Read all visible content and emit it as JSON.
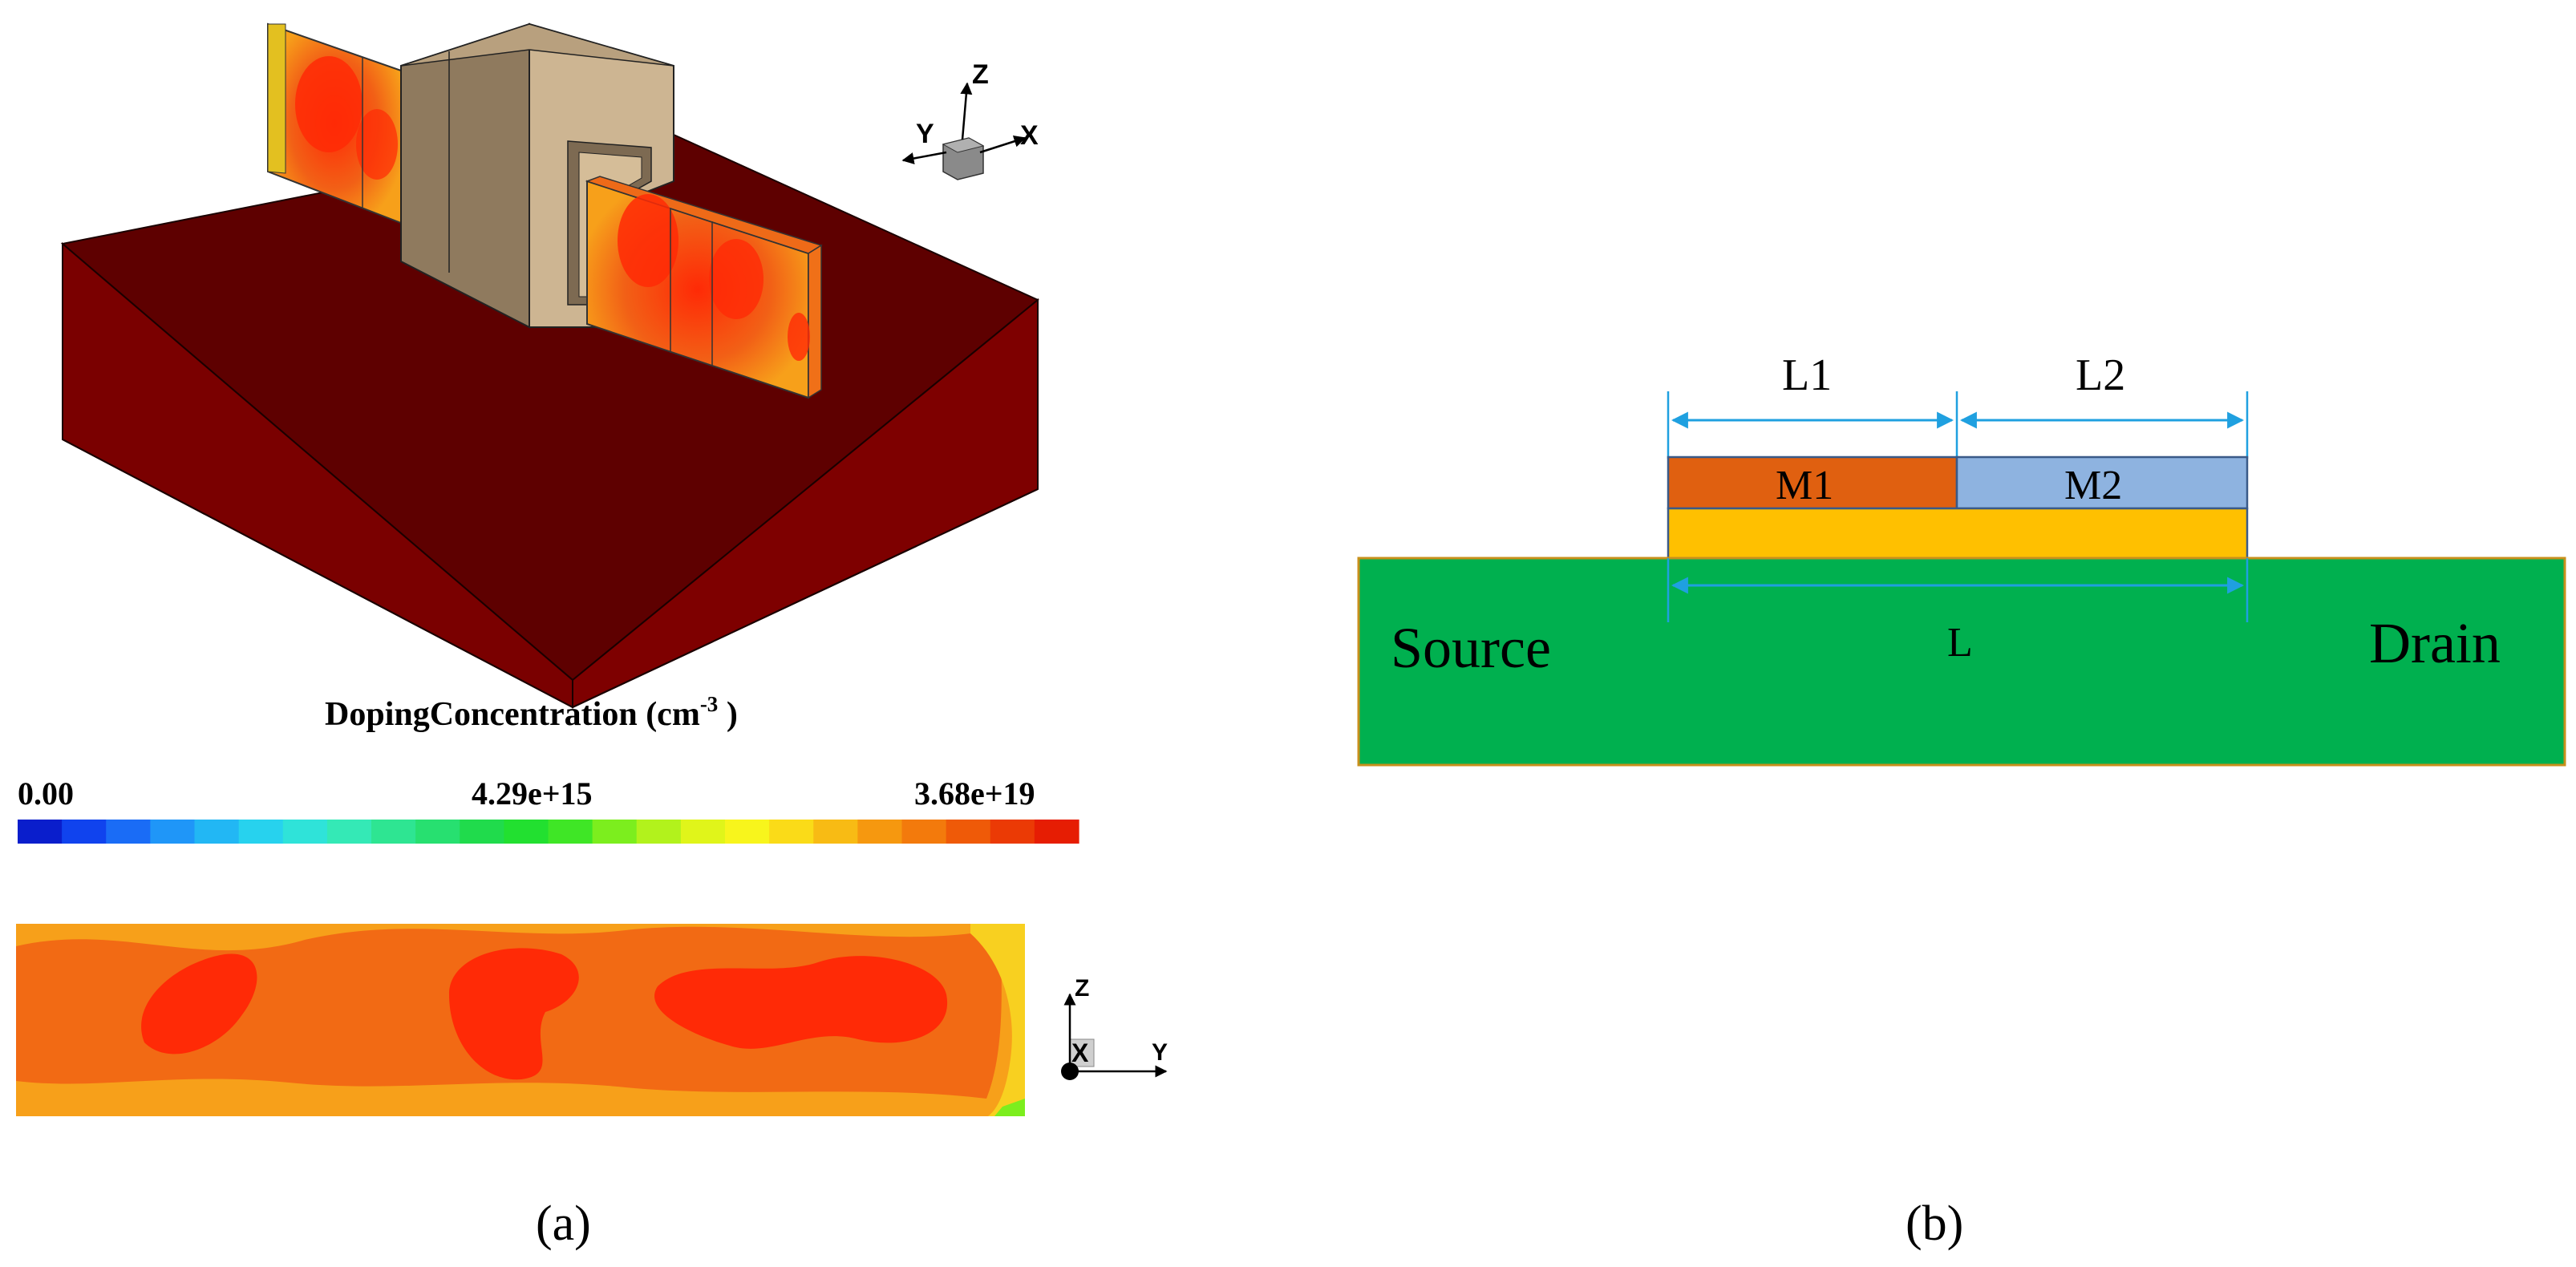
{
  "panel_a": {
    "label": "(a)",
    "axes_top": {
      "z": "Z",
      "y": "Y",
      "x": "X"
    },
    "colorbar": {
      "title": "DopingConcentration (cm",
      "title_exp": "-3",
      "title_end": " )",
      "min_label": "0.00",
      "mid_label": "4.29e+15",
      "max_label": "3.68e+19",
      "colors": [
        "#0a1ecc",
        "#1043ee",
        "#1a6cf6",
        "#1f96f8",
        "#22b7f4",
        "#27d2ee",
        "#2fe3d9",
        "#34e9b6",
        "#2ee592",
        "#27e070",
        "#20db4c",
        "#22e030",
        "#3fe626",
        "#7cee1e",
        "#b2f21c",
        "#e0f51a",
        "#f8f51c",
        "#fadb18",
        "#f8bb14",
        "#f6980f",
        "#f37a0c",
        "#ef5a08",
        "#eb3a05",
        "#e61d03"
      ]
    },
    "axes_bottom": {
      "z": "Z",
      "x": "X",
      "y": "Y"
    }
  },
  "panel_b": {
    "label": "(b)",
    "dim_l1": "L1",
    "dim_l2": "L2",
    "gate_m1": "M1",
    "gate_m2": "M2",
    "dim_l": "L",
    "source": "Source",
    "drain": "Drain",
    "colors": {
      "substrate": "#00b04f",
      "m1": "#e06010",
      "m2": "#8eb3e0",
      "oxide": "#ffc000",
      "dim_arrow": "#1fa0e0"
    }
  }
}
